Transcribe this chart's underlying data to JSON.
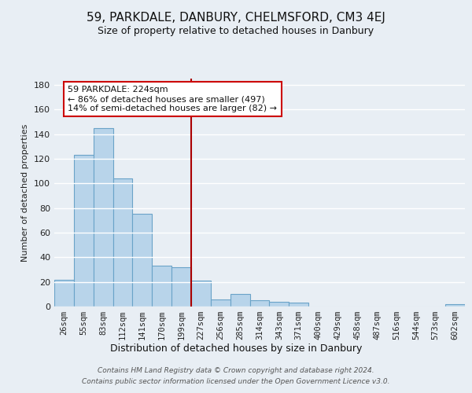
{
  "title": "59, PARKDALE, DANBURY, CHELMSFORD, CM3 4EJ",
  "subtitle": "Size of property relative to detached houses in Danbury",
  "xlabel": "Distribution of detached houses by size in Danbury",
  "ylabel": "Number of detached properties",
  "bar_labels": [
    "26sqm",
    "55sqm",
    "83sqm",
    "112sqm",
    "141sqm",
    "170sqm",
    "199sqm",
    "227sqm",
    "256sqm",
    "285sqm",
    "314sqm",
    "343sqm",
    "371sqm",
    "400sqm",
    "429sqm",
    "458sqm",
    "487sqm",
    "516sqm",
    "544sqm",
    "573sqm",
    "602sqm"
  ],
  "bar_values": [
    22,
    123,
    145,
    104,
    75,
    33,
    32,
    21,
    6,
    10,
    5,
    4,
    3,
    0,
    0,
    0,
    0,
    0,
    0,
    0,
    2
  ],
  "bar_color": "#b8d4ea",
  "bar_edge_color": "#6aa3c8",
  "vline_x_index": 7,
  "vline_color": "#aa0000",
  "annotation_line1": "59 PARKDALE: 224sqm",
  "annotation_line2": "← 86% of detached houses are smaller (497)",
  "annotation_line3": "14% of semi-detached houses are larger (82) →",
  "annotation_box_color": "#ffffff",
  "annotation_box_edge": "#cc0000",
  "ylim": [
    0,
    185
  ],
  "yticks": [
    0,
    20,
    40,
    60,
    80,
    100,
    120,
    140,
    160,
    180
  ],
  "footer_line1": "Contains HM Land Registry data © Crown copyright and database right 2024.",
  "footer_line2": "Contains public sector information licensed under the Open Government Licence v3.0.",
  "background_color": "#e8eef4",
  "grid_color": "#ffffff",
  "title_fontsize": 11,
  "subtitle_fontsize": 9,
  "tick_fontsize": 7.5,
  "ylabel_fontsize": 8,
  "xlabel_fontsize": 9
}
